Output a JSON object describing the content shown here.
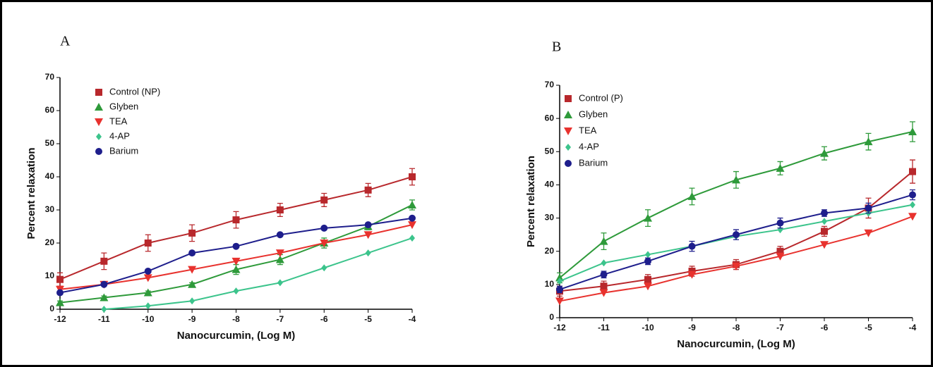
{
  "chart_data": [
    {
      "type": "line",
      "panel_label": "A",
      "x_label": "Nanocurcumin, (Log M)",
      "y_label": "Percent relaxation",
      "x": [
        -12,
        -11,
        -10,
        -9,
        -8,
        -7,
        -6,
        -5,
        -4
      ],
      "xlim": [
        -12,
        -4
      ],
      "xticks": [
        -12,
        -11,
        -10,
        -9,
        -8,
        -7,
        -6,
        -5,
        -4
      ],
      "ylim": [
        0,
        70
      ],
      "yticks": [
        0,
        10,
        20,
        30,
        40,
        50,
        60,
        70
      ],
      "series": [
        {
          "name": "Control (NP)",
          "color": "#b8282c",
          "marker": "square",
          "values": [
            9,
            14.5,
            20,
            23,
            27,
            30,
            33,
            36,
            40
          ],
          "errors": [
            2,
            2.5,
            2.5,
            2.5,
            2.5,
            2,
            2,
            2,
            2.5
          ]
        },
        {
          "name": "Glyben",
          "color": "#2e9a3a",
          "marker": "triangle-up",
          "values": [
            2,
            3.5,
            5,
            7.5,
            12,
            15,
            20,
            25,
            31.5
          ],
          "errors": [
            0.5,
            0.5,
            0.5,
            0.5,
            1.5,
            1.5,
            1.5,
            1,
            1.5
          ]
        },
        {
          "name": "TEA",
          "color": "#e8322e",
          "marker": "triangle-down",
          "values": [
            6,
            7.5,
            9.5,
            12,
            14.5,
            17,
            20,
            22.5,
            25.5
          ]
        },
        {
          "name": "4-AP",
          "color": "#3cc48c",
          "marker": "diamond",
          "values": [
            null,
            0,
            1,
            2.5,
            5.5,
            8,
            12.5,
            17,
            21.5
          ]
        },
        {
          "name": "Barium",
          "color": "#1e1e8c",
          "marker": "circle",
          "values": [
            5,
            7.5,
            11.5,
            17,
            19,
            22.5,
            24.5,
            25.5,
            27.5
          ]
        }
      ]
    },
    {
      "type": "line",
      "panel_label": "B",
      "x_label": "Nanocurcumin, (Log M)",
      "y_label": "Percent relaxation",
      "x": [
        -12,
        -11,
        -10,
        -9,
        -8,
        -7,
        -6,
        -5,
        -4
      ],
      "xlim": [
        -12,
        -4
      ],
      "xticks": [
        -12,
        -11,
        -10,
        -9,
        -8,
        -7,
        -6,
        -5,
        -4
      ],
      "ylim": [
        0,
        70
      ],
      "yticks": [
        0,
        10,
        20,
        30,
        40,
        50,
        60,
        70
      ],
      "series": [
        {
          "name": "Control (P)",
          "color": "#b8282c",
          "marker": "square",
          "values": [
            8,
            9.5,
            11.5,
            14,
            16,
            20,
            26,
            33,
            44
          ],
          "errors": [
            1.5,
            1.5,
            1.5,
            1.5,
            1.5,
            1.5,
            1.5,
            3,
            3.5
          ]
        },
        {
          "name": "Glyben",
          "color": "#2e9a3a",
          "marker": "triangle-up",
          "values": [
            12,
            23,
            30,
            36.5,
            41.5,
            45,
            49.5,
            53,
            56
          ],
          "errors": [
            1.5,
            2.5,
            2.5,
            2.5,
            2.5,
            2,
            2,
            2.5,
            3
          ]
        },
        {
          "name": "TEA",
          "color": "#e8322e",
          "marker": "triangle-down",
          "values": [
            5,
            7.5,
            9.5,
            13,
            15.5,
            18.5,
            22,
            25.5,
            30.5
          ]
        },
        {
          "name": "4-AP",
          "color": "#3cc48c",
          "marker": "diamond",
          "values": [
            11,
            16.5,
            19,
            21.5,
            24.5,
            26.5,
            29,
            31.5,
            34
          ]
        },
        {
          "name": "Barium",
          "color": "#1e1e8c",
          "marker": "circle",
          "values": [
            8.5,
            13,
            17,
            21.5,
            25,
            28.5,
            31.5,
            33,
            37
          ],
          "errors": [
            1,
            1,
            1,
            1.5,
            1.5,
            1.5,
            1,
            1.5,
            1.5
          ]
        }
      ]
    }
  ]
}
